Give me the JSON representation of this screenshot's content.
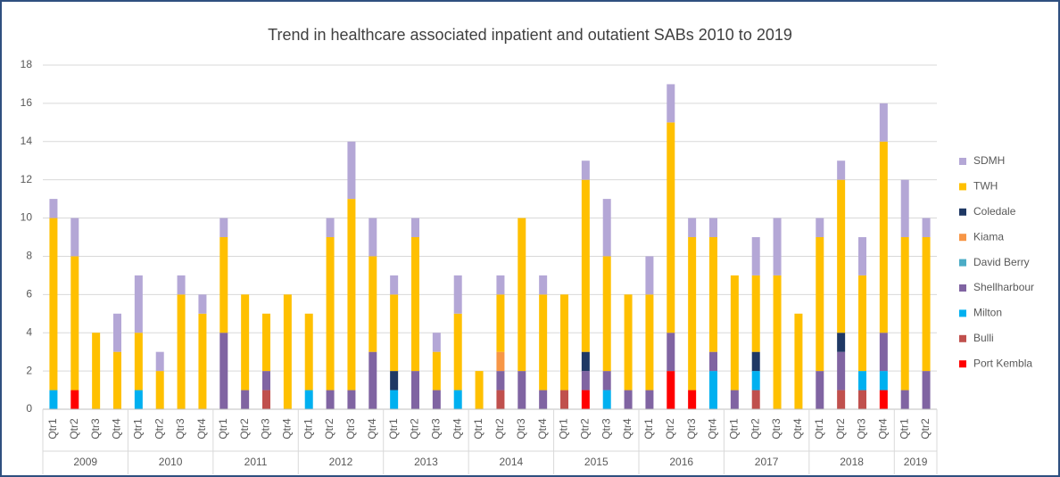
{
  "chart_data": {
    "type": "stacked_bar",
    "title": "Trend in healthcare associated inpatient and outatient SABs 2010 to 2019",
    "category_groups": [
      {
        "label": "2009",
        "categories": [
          "Qtr1",
          "Qtr2",
          "Qtr3",
          "Qtr4"
        ]
      },
      {
        "label": "2010",
        "categories": [
          "Qtr1",
          "Qtr2",
          "Qtr3",
          "Qtr4"
        ]
      },
      {
        "label": "2011",
        "categories": [
          "Qtr1",
          "Qtr2",
          "Qtr3",
          "Qtr4"
        ]
      },
      {
        "label": "2012",
        "categories": [
          "Qtr1",
          "Qtr2",
          "Qtr3",
          "Qtr4"
        ]
      },
      {
        "label": "2013",
        "categories": [
          "Qtr1",
          "Qtr2",
          "Qtr3",
          "Qtr4"
        ]
      },
      {
        "label": "2014",
        "categories": [
          "Qtr1",
          "Qtr2",
          "Qtr3",
          "Qtr4"
        ]
      },
      {
        "label": "2015",
        "categories": [
          "Qtr1",
          "Qtr2",
          "Qtr3",
          "Qtr4"
        ]
      },
      {
        "label": "2016",
        "categories": [
          "Qtr1",
          "Qtr2",
          "Qtr3",
          "Qtr4"
        ]
      },
      {
        "label": "2017",
        "categories": [
          "Qtr1",
          "Qtr2",
          "Qtr3",
          "Qtr4"
        ]
      },
      {
        "label": "2018",
        "categories": [
          "Qtr1",
          "Qtr2",
          "Qtr3",
          "Qtr4"
        ]
      },
      {
        "label": "2019",
        "categories": [
          "Qtr1",
          "Qtr2"
        ]
      }
    ],
    "series": [
      {
        "name": "Port Kembla",
        "color": "#ff0000",
        "values": [
          0,
          1,
          0,
          0,
          0,
          0,
          0,
          0,
          0,
          0,
          0,
          0,
          0,
          0,
          0,
          0,
          0,
          0,
          0,
          0,
          0,
          0,
          0,
          0,
          0,
          1,
          0,
          0,
          0,
          2,
          1,
          0,
          0,
          0,
          0,
          0,
          0,
          0,
          0,
          1,
          0,
          0
        ]
      },
      {
        "name": "Bulli",
        "color": "#c0504d",
        "values": [
          0,
          0,
          0,
          0,
          0,
          0,
          0,
          0,
          0,
          0,
          1,
          0,
          0,
          0,
          0,
          0,
          0,
          0,
          0,
          0,
          0,
          1,
          0,
          0,
          1,
          0,
          0,
          0,
          0,
          0,
          0,
          0,
          0,
          1,
          0,
          0,
          0,
          1,
          1,
          0,
          0,
          0
        ]
      },
      {
        "name": "Milton",
        "color": "#00b0f0",
        "values": [
          1,
          0,
          0,
          0,
          1,
          0,
          0,
          0,
          0,
          0,
          0,
          0,
          1,
          0,
          0,
          0,
          1,
          0,
          0,
          1,
          0,
          0,
          0,
          0,
          0,
          0,
          1,
          0,
          0,
          0,
          0,
          2,
          0,
          1,
          0,
          0,
          0,
          0,
          1,
          1,
          0,
          0
        ]
      },
      {
        "name": "Shellharbour",
        "color": "#8064a2",
        "values": [
          0,
          0,
          0,
          0,
          0,
          0,
          0,
          0,
          4,
          1,
          1,
          0,
          0,
          1,
          1,
          3,
          0,
          2,
          1,
          0,
          0,
          1,
          2,
          1,
          0,
          1,
          1,
          1,
          1,
          2,
          0,
          1,
          1,
          0,
          0,
          0,
          2,
          2,
          0,
          2,
          1,
          2
        ]
      },
      {
        "name": "David Berry",
        "color": "#4bacc6",
        "values": [
          0,
          0,
          0,
          0,
          0,
          0,
          0,
          0,
          0,
          0,
          0,
          0,
          0,
          0,
          0,
          0,
          0,
          0,
          0,
          0,
          0,
          0,
          0,
          0,
          0,
          0,
          0,
          0,
          0,
          0,
          0,
          0,
          0,
          0,
          0,
          0,
          0,
          0,
          0,
          0,
          0,
          0
        ]
      },
      {
        "name": "Kiama",
        "color": "#f79646",
        "values": [
          0,
          0,
          0,
          0,
          0,
          0,
          0,
          0,
          0,
          0,
          0,
          0,
          0,
          0,
          0,
          0,
          0,
          0,
          0,
          0,
          0,
          1,
          0,
          0,
          0,
          0,
          0,
          0,
          0,
          0,
          0,
          0,
          0,
          0,
          0,
          0,
          0,
          0,
          0,
          0,
          0,
          0
        ]
      },
      {
        "name": "Coledale",
        "color": "#1f3864",
        "values": [
          0,
          0,
          0,
          0,
          0,
          0,
          0,
          0,
          0,
          0,
          0,
          0,
          0,
          0,
          0,
          0,
          1,
          0,
          0,
          0,
          0,
          0,
          0,
          0,
          0,
          1,
          0,
          0,
          0,
          0,
          0,
          0,
          0,
          1,
          0,
          0,
          0,
          1,
          0,
          0,
          0,
          0
        ]
      },
      {
        "name": "TWH",
        "color": "#ffc000",
        "values": [
          9,
          7,
          4,
          3,
          3,
          2,
          6,
          5,
          5,
          5,
          3,
          6,
          4,
          8,
          10,
          5,
          4,
          7,
          2,
          4,
          2,
          3,
          8,
          5,
          5,
          9,
          6,
          5,
          5,
          11,
          8,
          6,
          6,
          4,
          7,
          5,
          7,
          8,
          5,
          10,
          8,
          7
        ]
      },
      {
        "name": "SDMH",
        "color": "#b4a7d6",
        "values": [
          1,
          2,
          0,
          2,
          3,
          1,
          1,
          1,
          1,
          0,
          0,
          0,
          0,
          1,
          3,
          2,
          1,
          1,
          1,
          2,
          0,
          1,
          0,
          1,
          0,
          1,
          3,
          0,
          2,
          2,
          1,
          1,
          0,
          2,
          3,
          0,
          1,
          1,
          2,
          2,
          3,
          1
        ]
      }
    ],
    "ylim": [
      0,
      18
    ],
    "yticks": [
      0,
      2,
      4,
      6,
      8,
      10,
      12,
      14,
      16,
      18
    ],
    "grid": true,
    "legend": "right"
  }
}
